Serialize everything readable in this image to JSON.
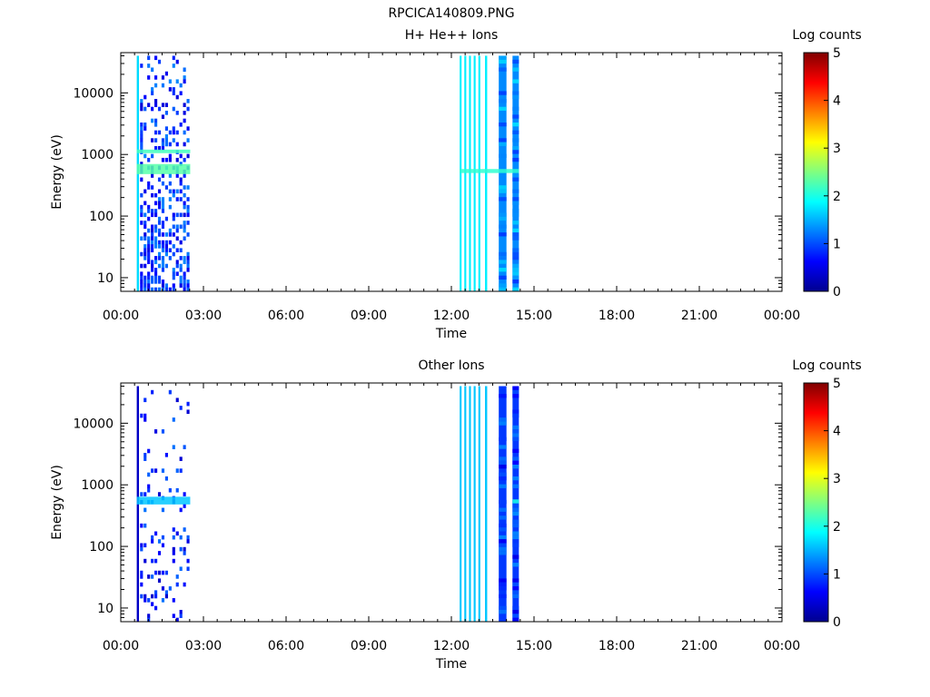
{
  "figure": {
    "title": "RPCICA140809.PNG"
  },
  "colorbar_colors": [
    "#00008f",
    "#0000ff",
    "#0080ff",
    "#00ffff",
    "#80ff80",
    "#ffff00",
    "#ff8000",
    "#ff0000",
    "#800000"
  ],
  "chart_data": [
    {
      "type": "heatmap",
      "title": "H+ He++ Ions",
      "xlabel": "Time",
      "ylabel": "Energy (eV)",
      "x_ticks": [
        "00:00",
        "03:00",
        "06:00",
        "09:00",
        "12:00",
        "15:00",
        "18:00",
        "21:00",
        "00:00"
      ],
      "x_range_hours": [
        0,
        24
      ],
      "y_scale": "log",
      "y_range": [
        6,
        45000
      ],
      "y_ticks": [
        {
          "value": 10,
          "label": "10"
        },
        {
          "value": 100,
          "label": "100"
        },
        {
          "value": 1000,
          "label": "1000"
        },
        {
          "value": 10000,
          "label": "10000"
        }
      ],
      "colorbar": {
        "label": "Log counts",
        "range": [
          0,
          5
        ],
        "ticks": [
          "0",
          "1",
          "2",
          "3",
          "4",
          "5"
        ]
      },
      "columns": [
        {
          "start_hours": 0.58,
          "end_hours": 0.66,
          "e_min": 6,
          "e_max": 40000,
          "level": 1.7,
          "pattern": "solid"
        },
        {
          "start_hours": 0.7,
          "end_hours": 2.52,
          "e_min": 6,
          "e_max": 40000,
          "level": 0.4,
          "pattern": "sparse-dense"
        },
        {
          "start_hours": 12.3,
          "end_hours": 12.37,
          "e_min": 6,
          "e_max": 40000,
          "level": 1.8,
          "pattern": "solid"
        },
        {
          "start_hours": 12.47,
          "end_hours": 12.54,
          "e_min": 6,
          "e_max": 40000,
          "level": 1.8,
          "pattern": "solid"
        },
        {
          "start_hours": 12.64,
          "end_hours": 12.71,
          "e_min": 6,
          "e_max": 40000,
          "level": 1.8,
          "pattern": "solid"
        },
        {
          "start_hours": 12.81,
          "end_hours": 12.88,
          "e_min": 6,
          "e_max": 40000,
          "level": 1.8,
          "pattern": "solid"
        },
        {
          "start_hours": 12.98,
          "end_hours": 13.05,
          "e_min": 6,
          "e_max": 40000,
          "level": 1.8,
          "pattern": "solid"
        },
        {
          "start_hours": 13.22,
          "end_hours": 13.3,
          "e_min": 6,
          "e_max": 40000,
          "level": 1.8,
          "pattern": "solid"
        },
        {
          "start_hours": 13.72,
          "end_hours": 14.0,
          "e_min": 6,
          "e_max": 40000,
          "level": 1.3,
          "pattern": "dense"
        },
        {
          "start_hours": 14.22,
          "end_hours": 14.45,
          "e_min": 6,
          "e_max": 40000,
          "level": 1.3,
          "pattern": "dense"
        }
      ],
      "bands": [
        {
          "e_min": 1050,
          "e_max": 1200,
          "start_hours": 0.58,
          "end_hours": 2.52,
          "level": 2.2
        },
        {
          "e_min": 480,
          "e_max": 700,
          "start_hours": 0.58,
          "end_hours": 2.52,
          "level": 2.3
        },
        {
          "e_min": 500,
          "e_max": 580,
          "start_hours": 12.3,
          "end_hours": 14.45,
          "level": 2.1
        }
      ]
    },
    {
      "type": "heatmap",
      "title": "Other Ions",
      "xlabel": "Time",
      "ylabel": "Energy (eV)",
      "x_ticks": [
        "00:00",
        "03:00",
        "06:00",
        "09:00",
        "12:00",
        "15:00",
        "18:00",
        "21:00",
        "00:00"
      ],
      "x_range_hours": [
        0,
        24
      ],
      "y_scale": "log",
      "y_range": [
        6,
        45000
      ],
      "y_ticks": [
        {
          "value": 10,
          "label": "10"
        },
        {
          "value": 100,
          "label": "100"
        },
        {
          "value": 1000,
          "label": "1000"
        },
        {
          "value": 10000,
          "label": "10000"
        }
      ],
      "colorbar": {
        "label": "Log counts",
        "range": [
          0,
          5
        ],
        "ticks": [
          "0",
          "1",
          "2",
          "3",
          "4",
          "5"
        ]
      },
      "columns": [
        {
          "start_hours": 0.58,
          "end_hours": 0.66,
          "e_min": 6,
          "e_max": 40000,
          "level": 0.3,
          "pattern": "solid"
        },
        {
          "start_hours": 0.7,
          "end_hours": 2.52,
          "e_min": 6,
          "e_max": 40000,
          "level": 0.3,
          "pattern": "very-sparse"
        },
        {
          "start_hours": 12.3,
          "end_hours": 12.37,
          "e_min": 6,
          "e_max": 40000,
          "level": 1.6,
          "pattern": "solid"
        },
        {
          "start_hours": 12.47,
          "end_hours": 12.54,
          "e_min": 6,
          "e_max": 40000,
          "level": 1.6,
          "pattern": "solid"
        },
        {
          "start_hours": 12.64,
          "end_hours": 12.71,
          "e_min": 6,
          "e_max": 40000,
          "level": 1.6,
          "pattern": "solid"
        },
        {
          "start_hours": 12.81,
          "end_hours": 12.88,
          "e_min": 6,
          "e_max": 40000,
          "level": 1.6,
          "pattern": "solid"
        },
        {
          "start_hours": 12.98,
          "end_hours": 13.05,
          "e_min": 6,
          "e_max": 40000,
          "level": 1.6,
          "pattern": "solid"
        },
        {
          "start_hours": 13.22,
          "end_hours": 13.3,
          "e_min": 6,
          "e_max": 40000,
          "level": 1.6,
          "pattern": "solid"
        },
        {
          "start_hours": 13.72,
          "end_hours": 14.0,
          "e_min": 6,
          "e_max": 40000,
          "level": 0.9,
          "pattern": "dense"
        },
        {
          "start_hours": 14.22,
          "end_hours": 14.45,
          "e_min": 6,
          "e_max": 40000,
          "level": 0.9,
          "pattern": "dense"
        }
      ],
      "bands": [
        {
          "e_min": 480,
          "e_max": 640,
          "start_hours": 0.58,
          "end_hours": 2.52,
          "level": 1.6
        },
        {
          "e_min": 500,
          "e_max": 580,
          "start_hours": 14.22,
          "end_hours": 14.45,
          "level": 2.0
        }
      ]
    }
  ]
}
